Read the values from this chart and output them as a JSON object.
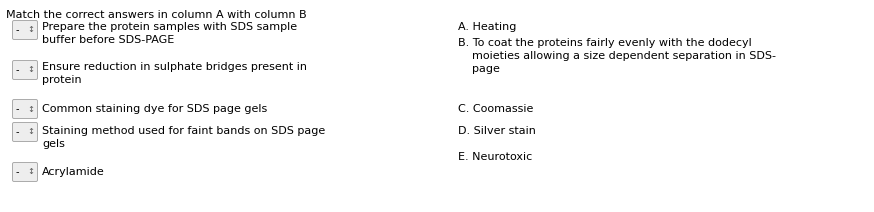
{
  "title": "Match the correct answers in column A with column B",
  "title_fontsize": 8.0,
  "title_color": "#000000",
  "background_color": "#ffffff",
  "col_a_items": [
    "Prepare the protein samples with SDS sample\nbuffer before SDS-PAGE",
    "Ensure reduction in sulphate bridges present in\nprotein",
    "Common staining dye for SDS page gels",
    "Staining method used for faint bands on SDS page\ngels",
    "Acrylamide"
  ],
  "col_b_items": [
    "A. Heating",
    "B. To coat the proteins fairly evenly with the dodecyl\n    moieties allowing a size dependent separation in SDS-\n    page",
    "C. Coomassie",
    "D. Silver stain",
    "E. Neurotoxic"
  ],
  "text_fontsize": 8.0,
  "fig_width": 8.74,
  "fig_height": 2.12,
  "dpi": 100
}
